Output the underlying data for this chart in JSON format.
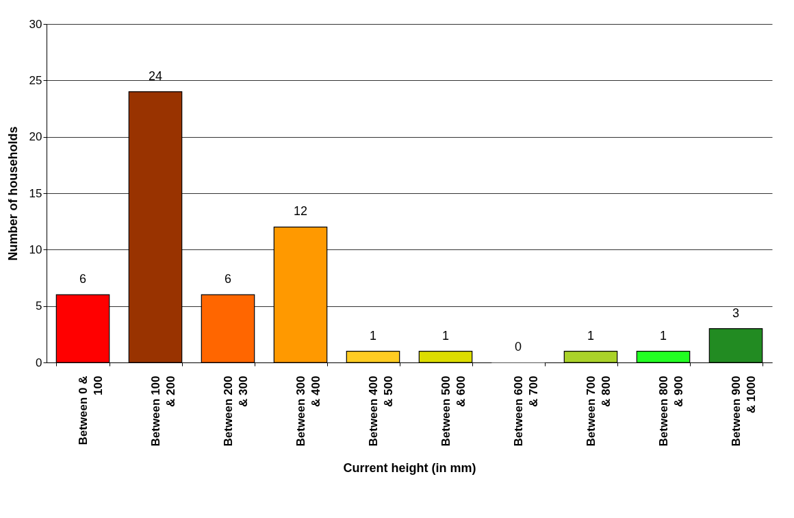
{
  "chart_data": {
    "type": "bar",
    "xlabel": "Current height (in mm)",
    "ylabel": "Number of households",
    "categories": [
      "Between 0 & 100",
      "Between 100 & 200",
      "Between 200 & 300",
      "Between 300 & 400",
      "Between 400 & 500",
      "Between 500 & 600",
      "Between 600 & 700",
      "Between 700 & 800",
      "Between 800 & 900",
      "Between 900 & 1000"
    ],
    "values": [
      6,
      24,
      6,
      12,
      1,
      1,
      0,
      1,
      1,
      3
    ],
    "colors": [
      "#ff0000",
      "#993300",
      "#ff6600",
      "#ff9900",
      "#ffcc22",
      "#dddd00",
      "#cccccc",
      "#aad22a",
      "#22ff22",
      "#228b22"
    ],
    "ylim": [
      0,
      30
    ],
    "yticks": [
      0,
      5,
      10,
      15,
      20,
      25,
      30
    ],
    "grid": "y",
    "data_labels": true
  }
}
